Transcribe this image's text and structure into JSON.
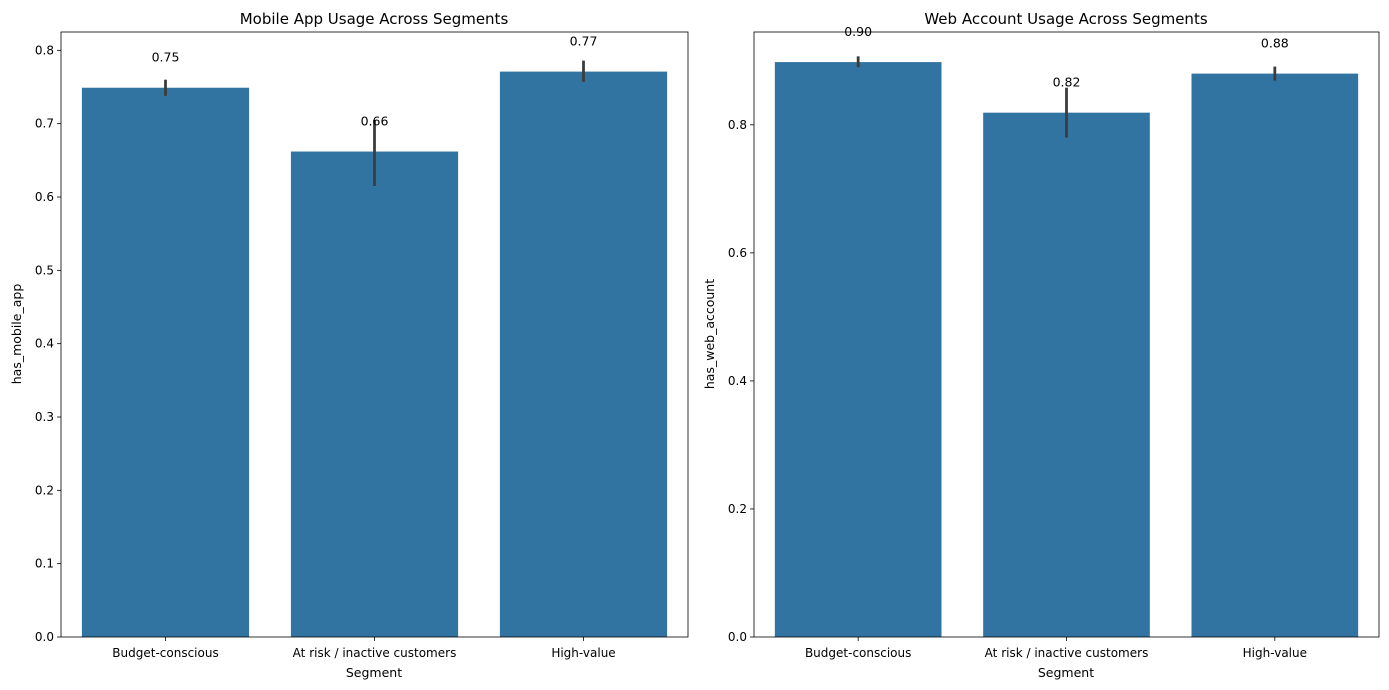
{
  "chart_data": [
    {
      "type": "bar",
      "title": "Mobile App Usage Across Segments",
      "xlabel": "Segment",
      "ylabel": "has_mobile_app",
      "categories": [
        "Budget-conscious",
        "At risk / inactive customers",
        "High-value"
      ],
      "values": [
        0.749,
        0.662,
        0.771
      ],
      "value_labels": [
        "0.75",
        "0.66",
        "0.77"
      ],
      "error_low": [
        0.738,
        0.615,
        0.757
      ],
      "error_high": [
        0.76,
        0.705,
        0.786
      ],
      "ylim": [
        0,
        0.825
      ],
      "yticks": [
        0.0,
        0.1,
        0.2,
        0.3,
        0.4,
        0.5,
        0.6,
        0.7,
        0.8
      ],
      "ytick_labels": [
        "0.0",
        "0.1",
        "0.2",
        "0.3",
        "0.4",
        "0.5",
        "0.6",
        "0.7",
        "0.8"
      ],
      "bar_color": "#3274a1",
      "error_color": "#3c3c3c",
      "grid": false
    },
    {
      "type": "bar",
      "title": "Web Account Usage Across Segments",
      "xlabel": "Segment",
      "ylabel": "has_web_account",
      "categories": [
        "Budget-conscious",
        "At risk / inactive customers",
        "High-value"
      ],
      "values": [
        0.898,
        0.819,
        0.88
      ],
      "value_labels": [
        "0.90",
        "0.82",
        "0.88"
      ],
      "error_low": [
        0.89,
        0.78,
        0.869
      ],
      "error_high": [
        0.907,
        0.858,
        0.891
      ],
      "ylim": [
        0,
        0.945
      ],
      "yticks": [
        0.0,
        0.2,
        0.4,
        0.6,
        0.8
      ],
      "ytick_labels": [
        "0.0",
        "0.2",
        "0.4",
        "0.6",
        "0.8"
      ],
      "bar_color": "#3274a1",
      "error_color": "#3c3c3c",
      "grid": false
    }
  ]
}
